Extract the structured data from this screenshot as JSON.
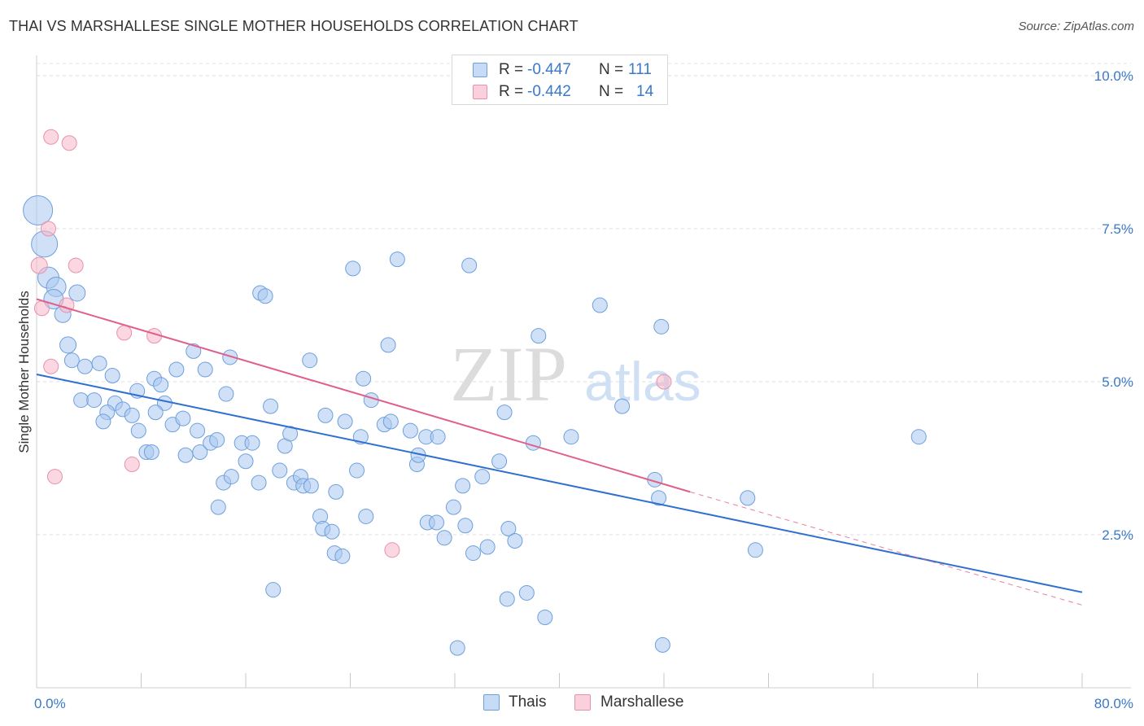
{
  "header": {
    "title": "THAI VS MARSHALLESE SINGLE MOTHER HOUSEHOLDS CORRELATION CHART",
    "source": "Source: ZipAtlas.com"
  },
  "legend": {
    "rows": [
      {
        "r_label": "R =",
        "r_value": "-0.447",
        "n_label": "N =",
        "n_value": "111",
        "color": "#a9c9f1"
      },
      {
        "r_label": "R =",
        "r_value": "-0.442",
        "n_label": "N =",
        "n_value": "14",
        "color": "#f5b6c8"
      }
    ]
  },
  "bottom_legend": {
    "items": [
      {
        "label": "Thais",
        "color": "#a9c9f1"
      },
      {
        "label": "Marshallese",
        "color": "#f5b6c8"
      }
    ]
  },
  "watermark": {
    "zip": "ZIP",
    "atlas": "atlas"
  },
  "chart_data": {
    "type": "scatter",
    "title": "THAI VS MARSHALLESE SINGLE MOTHER HOUSEHOLDS CORRELATION CHART",
    "xlabel": "",
    "ylabel": "Single Mother Households",
    "xlim": [
      0,
      80
    ],
    "ylim": [
      0,
      10.2
    ],
    "x_tick_labels": [
      {
        "value": 0,
        "label": "0.0%"
      },
      {
        "value": 80,
        "label": "80.0%"
      }
    ],
    "y_ticks": [
      {
        "value": 2.5,
        "label": "2.5%"
      },
      {
        "value": 5.0,
        "label": "5.0%"
      },
      {
        "value": 7.5,
        "label": "7.5%"
      },
      {
        "value": 10.0,
        "label": "10.0%"
      }
    ],
    "x_minor_ticks": [
      8,
      16,
      24,
      32,
      40,
      48,
      56,
      64,
      72,
      80
    ],
    "grid": true,
    "legend_position": "top-center",
    "series": [
      {
        "name": "Thais",
        "r": -0.447,
        "n": 111,
        "color": "#a9c9f1",
        "stroke": "#6e9fdc",
        "trend": {
          "x0": 0,
          "y0": 5.12,
          "x1": 80,
          "y1": 1.56,
          "color": "#2f6fd0"
        },
        "points": [
          [
            0.1,
            7.8,
            18
          ],
          [
            0.6,
            7.25,
            16
          ],
          [
            0.9,
            6.7,
            13
          ],
          [
            1.5,
            6.55,
            12
          ],
          [
            1.3,
            6.35,
            12
          ],
          [
            3.1,
            6.45,
            10
          ],
          [
            2.0,
            6.1,
            10
          ],
          [
            2.4,
            5.6,
            10
          ],
          [
            2.7,
            5.35,
            9
          ],
          [
            3.7,
            5.25,
            9
          ],
          [
            4.8,
            5.3,
            9
          ],
          [
            5.8,
            5.1,
            9
          ],
          [
            3.4,
            4.7,
            9
          ],
          [
            4.4,
            4.7,
            9
          ],
          [
            6.0,
            4.65,
            9
          ],
          [
            7.7,
            4.85,
            9
          ],
          [
            5.4,
            4.5,
            9
          ],
          [
            6.6,
            4.55,
            9
          ],
          [
            7.3,
            4.45,
            9
          ],
          [
            5.1,
            4.35,
            9
          ],
          [
            7.8,
            4.2,
            9
          ],
          [
            9.0,
            5.05,
            9
          ],
          [
            9.5,
            4.95,
            9
          ],
          [
            10.7,
            5.2,
            9
          ],
          [
            12.0,
            5.5,
            9
          ],
          [
            12.9,
            5.2,
            9
          ],
          [
            14.8,
            5.4,
            9
          ],
          [
            9.8,
            4.65,
            9
          ],
          [
            9.1,
            4.5,
            9
          ],
          [
            10.4,
            4.3,
            9
          ],
          [
            11.2,
            4.4,
            9
          ],
          [
            12.3,
            4.2,
            9
          ],
          [
            8.4,
            3.85,
            9
          ],
          [
            8.8,
            3.85,
            9
          ],
          [
            11.4,
            3.8,
            9
          ],
          [
            12.5,
            3.85,
            9
          ],
          [
            13.3,
            4.0,
            9
          ],
          [
            13.8,
            4.05,
            9
          ],
          [
            14.5,
            4.8,
            9
          ],
          [
            15.7,
            4.0,
            9
          ],
          [
            16.5,
            4.0,
            9
          ],
          [
            14.3,
            3.35,
            9
          ],
          [
            14.9,
            3.45,
            9
          ],
          [
            16.0,
            3.7,
            9
          ],
          [
            17.0,
            3.35,
            9
          ],
          [
            13.9,
            2.95,
            9
          ],
          [
            17.1,
            6.45,
            9
          ],
          [
            17.5,
            6.4,
            9
          ],
          [
            17.9,
            4.6,
            9
          ],
          [
            19.0,
            3.95,
            9
          ],
          [
            19.4,
            4.15,
            9
          ],
          [
            18.6,
            3.55,
            9
          ],
          [
            19.7,
            3.35,
            9
          ],
          [
            20.2,
            3.45,
            9
          ],
          [
            20.4,
            3.3,
            9
          ],
          [
            21.0,
            3.3,
            9
          ],
          [
            20.9,
            5.35,
            9
          ],
          [
            22.1,
            4.45,
            9
          ],
          [
            22.9,
            3.2,
            9
          ],
          [
            23.6,
            4.35,
            9
          ],
          [
            21.7,
            2.8,
            9
          ],
          [
            21.9,
            2.6,
            9
          ],
          [
            22.6,
            2.55,
            9
          ],
          [
            22.8,
            2.2,
            9
          ],
          [
            23.4,
            2.15,
            9
          ],
          [
            24.2,
            6.85,
            9
          ],
          [
            24.5,
            3.55,
            9
          ],
          [
            25.0,
            5.05,
            9
          ],
          [
            25.6,
            4.7,
            9
          ],
          [
            25.2,
            2.8,
            9
          ],
          [
            26.6,
            4.3,
            9
          ],
          [
            27.1,
            4.35,
            9
          ],
          [
            26.9,
            5.6,
            9
          ],
          [
            27.6,
            7.0,
            9
          ],
          [
            28.6,
            4.2,
            9
          ],
          [
            29.1,
            3.65,
            9
          ],
          [
            29.2,
            3.8,
            9
          ],
          [
            29.8,
            4.1,
            9
          ],
          [
            30.7,
            4.1,
            9
          ],
          [
            29.9,
            2.7,
            9
          ],
          [
            30.6,
            2.7,
            9
          ],
          [
            31.2,
            2.45,
            9
          ],
          [
            31.9,
            2.95,
            9
          ],
          [
            32.6,
            3.3,
            9
          ],
          [
            32.8,
            2.65,
            9
          ],
          [
            33.4,
            2.2,
            9
          ],
          [
            33.1,
            6.9,
            9
          ],
          [
            34.1,
            3.45,
            9
          ],
          [
            34.5,
            2.3,
            9
          ],
          [
            35.4,
            3.7,
            9
          ],
          [
            36.1,
            2.6,
            9
          ],
          [
            35.8,
            4.5,
            9
          ],
          [
            36.6,
            2.4,
            9
          ],
          [
            36.0,
            1.45,
            9
          ],
          [
            38.4,
            5.75,
            9
          ],
          [
            38.9,
            1.15,
            9
          ],
          [
            38.0,
            4.0,
            9
          ],
          [
            40.9,
            4.1,
            9
          ],
          [
            43.1,
            6.25,
            9
          ],
          [
            44.8,
            4.6,
            9
          ],
          [
            47.8,
            5.9,
            9
          ],
          [
            47.3,
            3.4,
            9
          ],
          [
            47.6,
            3.1,
            9
          ],
          [
            47.9,
            0.7,
            9
          ],
          [
            54.4,
            3.1,
            9
          ],
          [
            55.0,
            2.25,
            9
          ],
          [
            67.5,
            4.1,
            9
          ],
          [
            18.1,
            1.6,
            9
          ],
          [
            32.2,
            0.65,
            9
          ],
          [
            37.5,
            1.55,
            9
          ],
          [
            24.8,
            4.1,
            9
          ]
        ]
      },
      {
        "name": "Marshallese",
        "r": -0.442,
        "n": 14,
        "color": "#f5b6c8",
        "stroke": "#e991ab",
        "trend": {
          "x0": 0,
          "y0": 6.35,
          "x1": 50,
          "y1": 3.2,
          "color": "#e0608a",
          "dash_x1": 80,
          "dash_y1": 1.35
        },
        "points": [
          [
            1.1,
            9.0,
            9
          ],
          [
            2.5,
            8.9,
            9
          ],
          [
            0.9,
            7.5,
            9
          ],
          [
            0.2,
            6.9,
            10
          ],
          [
            3.0,
            6.9,
            9
          ],
          [
            2.3,
            6.25,
            9
          ],
          [
            0.4,
            6.2,
            9
          ],
          [
            1.1,
            5.25,
            9
          ],
          [
            6.7,
            5.8,
            9
          ],
          [
            9.0,
            5.75,
            9
          ],
          [
            1.4,
            3.45,
            9
          ],
          [
            7.3,
            3.65,
            9
          ],
          [
            27.2,
            2.25,
            9
          ],
          [
            48.0,
            5.0,
            9
          ]
        ]
      }
    ]
  }
}
